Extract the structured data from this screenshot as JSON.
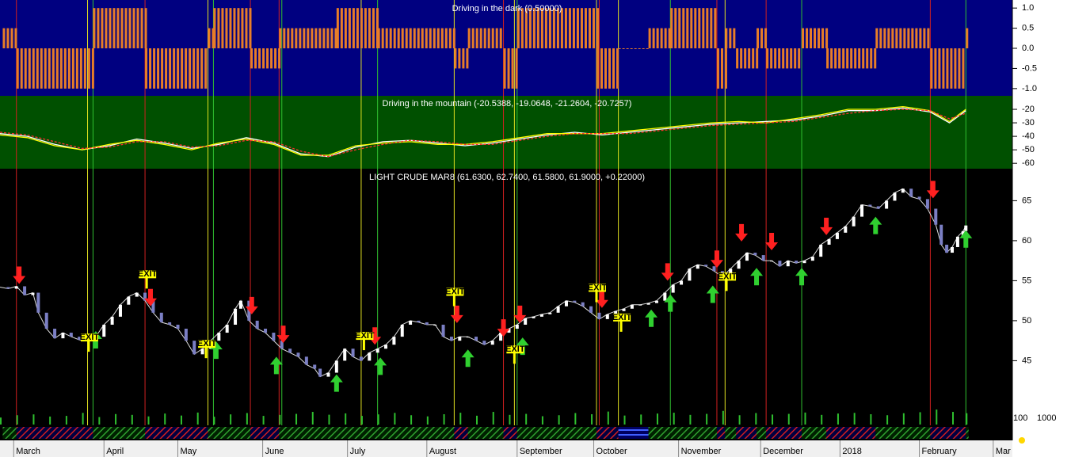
{
  "chart_data": {
    "type": "candlestick",
    "xlim": [
      0,
      370
    ],
    "xticks": [
      {
        "value": 5,
        "label": "March"
      },
      {
        "value": 38,
        "label": "April"
      },
      {
        "value": 65,
        "label": "May"
      },
      {
        "value": 96,
        "label": "June"
      },
      {
        "value": 127,
        "label": "July"
      },
      {
        "value": 156,
        "label": "August"
      },
      {
        "value": 189,
        "label": "September"
      },
      {
        "value": 217,
        "label": "October"
      },
      {
        "value": 248,
        "label": "November"
      },
      {
        "value": 278,
        "label": "December"
      },
      {
        "value": 307,
        "label": "2018"
      },
      {
        "value": 336,
        "label": "February"
      },
      {
        "value": 363,
        "label": "Mar"
      }
    ],
    "oscillator": {
      "title": "Driving in the dark (0.50000)",
      "color": "#e87d28",
      "background": "#000080",
      "ylim": [
        -1.18,
        1.2
      ],
      "yticks": [
        {
          "value": 1,
          "label": "1.0"
        },
        0.5,
        {
          "value": 0,
          "label": "0.0"
        },
        -0.5,
        {
          "value": -1,
          "label": "-1.0"
        }
      ],
      "segments": [
        [
          1,
          6,
          0.5
        ],
        [
          6,
          34,
          -1
        ],
        [
          34,
          53,
          1
        ],
        [
          53,
          76,
          -1
        ],
        [
          76,
          78,
          0.5
        ],
        [
          78,
          91.5,
          1
        ],
        [
          91.5,
          102,
          -0.5
        ],
        [
          102,
          123,
          0.5
        ],
        [
          123,
          138,
          1
        ],
        [
          138,
          166,
          0.5
        ],
        [
          166,
          171,
          -0.5
        ],
        [
          171,
          184,
          0.5
        ],
        [
          184,
          189,
          -1
        ],
        [
          189,
          218,
          1
        ],
        [
          218,
          226,
          -1
        ],
        [
          226,
          237,
          0
        ],
        [
          237,
          245,
          0.5
        ],
        [
          245,
          262,
          1
        ],
        [
          262,
          265,
          -1
        ],
        [
          265,
          269,
          0.5
        ],
        [
          269,
          276.5,
          -0.5
        ],
        [
          276.5,
          280,
          0.5
        ],
        [
          280,
          293,
          -0.5
        ],
        [
          293,
          302,
          0.5
        ],
        [
          302,
          320,
          -0.5
        ],
        [
          320,
          340,
          0.5
        ],
        [
          340,
          353,
          -1
        ],
        [
          353,
          354,
          0.5
        ]
      ]
    },
    "indicator": {
      "title": "Driving in the mountain (-20.5388, -19.0648, -21.2604, -20.7257)",
      "background": "#005000",
      "ylim": [
        -64,
        -10
      ],
      "yticks": [
        -20,
        -30,
        -40,
        -50,
        -60
      ],
      "x": [
        0,
        10,
        20,
        30,
        40,
        50,
        60,
        70,
        80,
        90,
        100,
        110,
        120,
        130,
        140,
        150,
        160,
        170,
        180,
        190,
        200,
        210,
        220,
        230,
        240,
        250,
        260,
        270,
        280,
        290,
        300,
        310,
        320,
        330,
        340,
        347,
        353
      ],
      "series": [
        {
          "color": "#ffffff",
          "dash": false,
          "values": [
            -38,
            -40,
            -46,
            -50,
            -47,
            -42,
            -45,
            -49,
            -46,
            -41,
            -45,
            -53,
            -55,
            -48,
            -44,
            -43,
            -45,
            -47,
            -45,
            -42,
            -39,
            -37,
            -39,
            -37,
            -35,
            -33,
            -31,
            -30,
            -29,
            -28,
            -25,
            -21,
            -21,
            -19,
            -22,
            -30,
            -21
          ]
        },
        {
          "color": "#ffff00",
          "dash": false,
          "values": [
            -39,
            -41,
            -47,
            -50,
            -46,
            -43,
            -46,
            -50,
            -45,
            -42,
            -46,
            -54,
            -54,
            -47,
            -45,
            -44,
            -46,
            -46,
            -44,
            -41,
            -38,
            -38,
            -38,
            -36,
            -34,
            -32,
            -30,
            -29,
            -30,
            -27,
            -24,
            -20,
            -20,
            -18,
            -21,
            -29,
            -20
          ]
        },
        {
          "color": "#ff3030",
          "dash": true,
          "values": [
            -37,
            -39,
            -44,
            -49,
            -48,
            -44,
            -44,
            -48,
            -47,
            -43,
            -44,
            -51,
            -55,
            -50,
            -46,
            -43,
            -44,
            -46,
            -46,
            -43,
            -40,
            -38,
            -38,
            -38,
            -36,
            -34,
            -32,
            -31,
            -30,
            -29,
            -26,
            -23,
            -21,
            -20,
            -21,
            -27,
            -23
          ]
        }
      ]
    },
    "title": "LIGHT CRUDE MAR8 (61.6300, 62.7400, 61.5800, 61.9000, +0.22000)",
    "ylim": [
      39,
      69
    ],
    "yticks": [
      45,
      50,
      55,
      60,
      65
    ],
    "up_color": "#ffffff",
    "down_color": "#7b7fc4",
    "x": [
      0,
      3,
      6,
      9,
      12,
      14,
      17,
      20,
      23,
      26,
      29,
      32,
      35,
      38,
      41,
      44,
      47,
      50,
      53,
      56,
      59,
      62,
      65,
      68,
      71,
      74,
      77,
      80,
      83,
      86,
      88,
      91,
      94,
      97,
      100,
      103,
      106,
      109,
      112,
      115,
      117,
      120,
      123,
      126,
      129,
      132,
      135,
      138,
      141,
      144,
      147,
      150,
      153,
      156,
      159,
      162,
      165,
      168,
      171,
      174,
      177,
      180,
      183,
      186,
      189,
      192,
      195,
      198,
      201,
      204,
      207,
      210,
      213,
      216,
      219,
      222,
      225,
      228,
      231,
      234,
      237,
      240,
      243,
      246,
      249,
      252,
      255,
      258,
      261,
      264,
      267,
      270,
      273,
      276,
      279,
      282,
      285,
      288,
      291,
      294,
      297,
      300,
      303,
      306,
      309,
      312,
      315,
      318,
      321,
      324,
      327,
      330,
      333,
      336,
      339,
      342,
      344,
      346,
      348,
      350,
      352,
      353
    ],
    "values": [
      54.2,
      54,
      54.3,
      53.2,
      53.5,
      51,
      49,
      47.8,
      48.5,
      48,
      47.6,
      47.5,
      48,
      49.5,
      50.5,
      52,
      53,
      53.5,
      52.5,
      51,
      49.8,
      49.5,
      49,
      47.5,
      45.8,
      46.5,
      47.5,
      48.5,
      49.5,
      51.5,
      52.5,
      50,
      49,
      48.5,
      47.5,
      46.5,
      46,
      45.5,
      44.5,
      44,
      43,
      43.5,
      45,
      46.5,
      45.5,
      45,
      46,
      46.5,
      47,
      48,
      49.5,
      50,
      49.8,
      49.5,
      49.5,
      48,
      47.5,
      48,
      48,
      47.5,
      47,
      47.5,
      48.5,
      49,
      49.5,
      50.3,
      50.5,
      50.8,
      51,
      51.8,
      52.5,
      52.3,
      51.8,
      51,
      50.2,
      50.8,
      51.2,
      51.5,
      52,
      52,
      52.2,
      52.5,
      53.5,
      54.5,
      55,
      56.5,
      57,
      56.8,
      56.2,
      55.5,
      56.5,
      57.5,
      58.5,
      58.2,
      57.5,
      57.5,
      56.8,
      57.5,
      57.2,
      57.5,
      58,
      59.5,
      60.2,
      61,
      61.8,
      63,
      64.5,
      64.3,
      64,
      65,
      66,
      66.5,
      65.5,
      65.2,
      64,
      62,
      59.5,
      58.5,
      59.2,
      60.5,
      61.2,
      61.9
    ],
    "volume": {
      "color": "#2fbf2f",
      "ylim": [
        0,
        1000
      ],
      "labels": [
        "100",
        "1000"
      ],
      "x": [
        0,
        6,
        12,
        18,
        24,
        30,
        36,
        42,
        48,
        54,
        60,
        66,
        72,
        78,
        84,
        90,
        96,
        102,
        108,
        114,
        120,
        126,
        132,
        138,
        144,
        150,
        156,
        162,
        168,
        174,
        180,
        186,
        192,
        198,
        204,
        210,
        216,
        222,
        228,
        234,
        240,
        246,
        252,
        258,
        264,
        270,
        276,
        282,
        288,
        294,
        300,
        306,
        312,
        318,
        324,
        330,
        336,
        342,
        348,
        353
      ],
      "values": [
        420,
        560,
        610,
        480,
        520,
        700,
        450,
        630,
        580,
        490,
        660,
        540,
        720,
        470,
        610,
        690,
        520,
        580,
        640,
        760,
        590,
        670,
        520,
        610,
        700,
        560,
        490,
        620,
        710,
        530,
        760,
        580,
        640,
        500,
        560,
        690,
        620,
        780,
        540,
        600,
        660,
        710,
        580,
        640,
        820,
        560,
        690,
        600,
        640,
        720,
        580,
        660,
        700,
        620,
        560,
        680,
        740,
        900,
        760,
        680
      ]
    },
    "down_arrows": {
      "color": "#ff2020",
      "points": [
        [
          7,
          54.6
        ],
        [
          55,
          51.8
        ],
        [
          92,
          50.8
        ],
        [
          103.5,
          47.2
        ],
        [
          137,
          47
        ],
        [
          167,
          49.7
        ],
        [
          184,
          48
        ],
        [
          190,
          49.7
        ],
        [
          220,
          51.6
        ],
        [
          244,
          55
        ],
        [
          262,
          56.6
        ],
        [
          271,
          59.9
        ],
        [
          282,
          58.8
        ],
        [
          302,
          60.7
        ],
        [
          341,
          65.3
        ]
      ]
    },
    "up_arrows": {
      "color": "#30d030",
      "points": [
        [
          35,
          48.7
        ],
        [
          79,
          47.4
        ],
        [
          101,
          45.5
        ],
        [
          123,
          43.3
        ],
        [
          139,
          45.4
        ],
        [
          171,
          46.4
        ],
        [
          191,
          47.9
        ],
        [
          238,
          51.4
        ],
        [
          245,
          53.3
        ],
        [
          260.5,
          54.4
        ],
        [
          276.5,
          56.6
        ],
        [
          293,
          56.6
        ],
        [
          320,
          63
        ],
        [
          353,
          61.3
        ]
      ]
    },
    "exit_labels": {
      "text": "EXIT",
      "color": "#ffff00",
      "points": [
        [
          53.6,
          55.8
        ],
        [
          32.4,
          47.9
        ],
        [
          75.3,
          47.1
        ],
        [
          133,
          48.1
        ],
        [
          166,
          53.6
        ],
        [
          188,
          46.4
        ],
        [
          218,
          54.1
        ],
        [
          227,
          50.4
        ],
        [
          265.5,
          55.5
        ]
      ]
    },
    "signal_lines": [
      {
        "color": "#d02020",
        "days": [
          6,
          53,
          91.5,
          102,
          184,
          219,
          262,
          280,
          340
        ]
      },
      {
        "color": "#30c030",
        "days": [
          34,
          78,
          103,
          138,
          189,
          245,
          293,
          353
        ]
      },
      {
        "color": "#e0e020",
        "days": [
          32,
          76,
          132,
          166,
          188,
          218,
          226,
          265
        ]
      }
    ]
  }
}
